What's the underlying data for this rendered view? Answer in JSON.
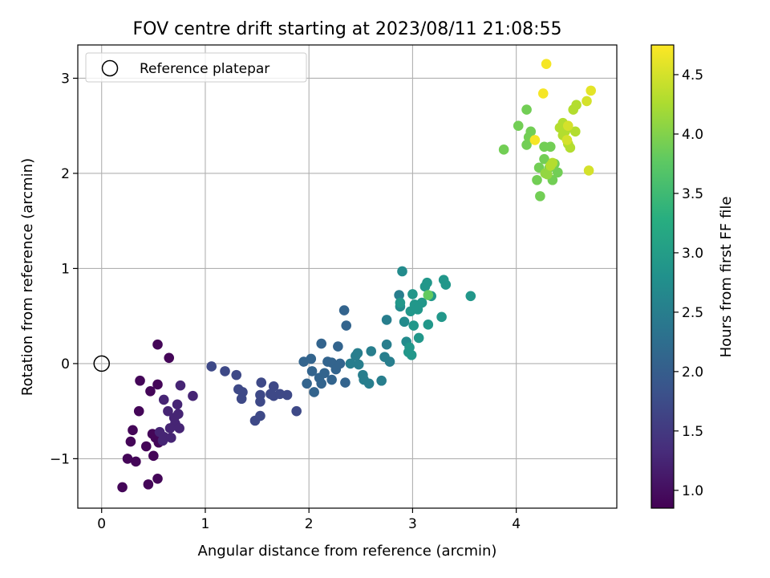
{
  "chart_data": {
    "type": "scatter",
    "title": "FOV centre drift starting at 2023/08/11 21:08:55",
    "xlabel": "Angular distance from reference (arcmin)",
    "ylabel": "Rotation from reference (arcmin)",
    "xlim": [
      -0.23,
      4.97
    ],
    "ylim": [
      -1.52,
      3.35
    ],
    "xticks": [
      0,
      1,
      2,
      3,
      4
    ],
    "yticks": [
      -1,
      0,
      1,
      2,
      3
    ],
    "grid": true,
    "legend": {
      "position": "top-left",
      "entries": [
        "Reference platepar"
      ]
    },
    "reference_point": {
      "x": 0,
      "y": 0
    },
    "colorbar": {
      "label": "Hours from first FF file",
      "colormap": "viridis",
      "range": [
        0.85,
        4.75
      ],
      "ticks": [
        "1.0",
        "1.5",
        "2.0",
        "2.5",
        "3.0",
        "3.5",
        "4.0",
        "4.5"
      ]
    },
    "points": [
      [
        0.54,
        0.2,
        0.9
      ],
      [
        0.65,
        0.06,
        0.9
      ],
      [
        0.37,
        -0.18,
        0.9
      ],
      [
        0.54,
        -0.22,
        0.9
      ],
      [
        0.47,
        -0.29,
        0.9
      ],
      [
        0.36,
        -0.5,
        0.9
      ],
      [
        0.3,
        -0.7,
        0.9
      ],
      [
        0.28,
        -0.82,
        0.9
      ],
      [
        0.43,
        -0.87,
        0.9
      ],
      [
        0.5,
        -0.97,
        0.9
      ],
      [
        0.25,
        -1.0,
        0.9
      ],
      [
        0.33,
        -1.03,
        0.9
      ],
      [
        0.2,
        -1.3,
        0.9
      ],
      [
        0.45,
        -1.27,
        0.9
      ],
      [
        0.54,
        -1.21,
        0.9
      ],
      [
        0.49,
        -0.74,
        0.9
      ],
      [
        0.52,
        -0.78,
        0.9
      ],
      [
        0.55,
        -0.83,
        0.9
      ],
      [
        0.6,
        -0.38,
        1.25
      ],
      [
        0.64,
        -0.5,
        1.25
      ],
      [
        0.7,
        -0.57,
        1.25
      ],
      [
        0.73,
        -0.43,
        1.25
      ],
      [
        0.74,
        -0.53,
        1.25
      ],
      [
        0.76,
        -0.23,
        1.25
      ],
      [
        0.71,
        -0.63,
        1.25
      ],
      [
        0.75,
        -0.68,
        1.25
      ],
      [
        0.66,
        -0.68,
        1.25
      ],
      [
        0.6,
        -0.77,
        1.25
      ],
      [
        0.67,
        -0.78,
        1.25
      ],
      [
        0.88,
        -0.34,
        1.25
      ],
      [
        0.56,
        -0.72,
        1.25
      ],
      [
        0.59,
        -0.81,
        1.25
      ],
      [
        1.06,
        -0.03,
        1.7
      ],
      [
        1.19,
        -0.08,
        1.7
      ],
      [
        1.3,
        -0.12,
        1.7
      ],
      [
        1.32,
        -0.27,
        1.7
      ],
      [
        1.36,
        -0.3,
        1.7
      ],
      [
        1.35,
        -0.37,
        1.7
      ],
      [
        1.48,
        -0.6,
        1.7
      ],
      [
        1.53,
        -0.55,
        1.7
      ],
      [
        1.53,
        -0.33,
        1.7
      ],
      [
        1.53,
        -0.4,
        1.7
      ],
      [
        1.54,
        -0.2,
        1.7
      ],
      [
        1.66,
        -0.24,
        1.7
      ],
      [
        1.66,
        -0.34,
        1.7
      ],
      [
        1.72,
        -0.32,
        1.7
      ],
      [
        1.79,
        -0.33,
        1.7
      ],
      [
        1.88,
        -0.5,
        1.7
      ],
      [
        1.63,
        -0.32,
        1.7
      ],
      [
        1.95,
        0.02,
        2.1
      ],
      [
        2.02,
        0.05,
        2.1
      ],
      [
        2.03,
        -0.08,
        2.1
      ],
      [
        2.1,
        -0.15,
        2.1
      ],
      [
        2.15,
        -0.1,
        2.1
      ],
      [
        2.18,
        0.02,
        2.1
      ],
      [
        2.22,
        0.01,
        2.1
      ],
      [
        2.12,
        0.21,
        2.1
      ],
      [
        2.26,
        -0.06,
        2.1
      ],
      [
        2.05,
        -0.3,
        2.1
      ],
      [
        1.98,
        -0.21,
        2.1
      ],
      [
        2.12,
        -0.21,
        2.1
      ],
      [
        2.22,
        -0.17,
        2.1
      ],
      [
        2.28,
        0.18,
        2.1
      ],
      [
        2.3,
        0.0,
        2.1
      ],
      [
        2.35,
        -0.2,
        2.1
      ],
      [
        2.34,
        0.56,
        2.1
      ],
      [
        2.36,
        0.4,
        2.1
      ],
      [
        2.4,
        0.0,
        2.5
      ],
      [
        2.45,
        0.08,
        2.5
      ],
      [
        2.47,
        0.11,
        2.5
      ],
      [
        2.48,
        -0.01,
        2.5
      ],
      [
        2.52,
        -0.12,
        2.5
      ],
      [
        2.53,
        -0.17,
        2.5
      ],
      [
        2.58,
        -0.21,
        2.5
      ],
      [
        2.6,
        0.13,
        2.5
      ],
      [
        2.7,
        -0.18,
        2.5
      ],
      [
        2.73,
        0.07,
        2.5
      ],
      [
        2.75,
        0.2,
        2.5
      ],
      [
        2.78,
        0.02,
        2.5
      ],
      [
        2.75,
        0.46,
        2.5
      ],
      [
        2.87,
        0.72,
        2.5
      ],
      [
        2.88,
        0.6,
        2.7
      ],
      [
        2.9,
        0.97,
        2.7
      ],
      [
        2.92,
        0.44,
        2.7
      ],
      [
        2.94,
        0.23,
        2.7
      ],
      [
        2.96,
        0.12,
        2.9
      ],
      [
        2.99,
        0.09,
        2.9
      ],
      [
        2.97,
        0.17,
        2.9
      ],
      [
        2.98,
        0.55,
        2.9
      ],
      [
        3.0,
        0.73,
        2.9
      ],
      [
        3.01,
        0.4,
        2.9
      ],
      [
        3.02,
        0.62,
        2.9
      ],
      [
        3.05,
        0.57,
        2.9
      ],
      [
        3.06,
        0.27,
        2.9
      ],
      [
        3.09,
        0.64,
        2.9
      ],
      [
        3.12,
        0.81,
        2.9
      ],
      [
        3.14,
        0.85,
        2.9
      ],
      [
        3.15,
        0.41,
        2.9
      ],
      [
        3.18,
        0.71,
        2.9
      ],
      [
        3.28,
        0.49,
        2.9
      ],
      [
        3.3,
        0.88,
        2.9
      ],
      [
        3.32,
        0.83,
        2.9
      ],
      [
        3.56,
        0.71,
        2.9
      ],
      [
        2.88,
        0.64,
        2.9
      ],
      [
        3.15,
        0.72,
        3.8
      ],
      [
        3.88,
        2.25,
        3.9
      ],
      [
        4.02,
        2.5,
        3.9
      ],
      [
        4.1,
        2.67,
        3.9
      ],
      [
        4.1,
        2.3,
        3.9
      ],
      [
        4.12,
        2.38,
        3.9
      ],
      [
        4.14,
        2.44,
        3.9
      ],
      [
        4.2,
        1.93,
        3.9
      ],
      [
        4.22,
        2.06,
        3.9
      ],
      [
        4.23,
        1.76,
        3.9
      ],
      [
        4.27,
        2.28,
        3.9
      ],
      [
        4.32,
        2.06,
        3.9
      ],
      [
        4.33,
        2.28,
        3.9
      ],
      [
        4.35,
        1.93,
        3.9
      ],
      [
        4.37,
        2.1,
        3.9
      ],
      [
        4.4,
        2.01,
        3.9
      ],
      [
        4.27,
        2.15,
        3.9
      ],
      [
        4.28,
        2.0,
        4.1
      ],
      [
        4.3,
        1.99,
        4.1
      ],
      [
        4.33,
        2.08,
        4.3
      ],
      [
        4.35,
        2.11,
        4.3
      ],
      [
        4.42,
        2.48,
        4.3
      ],
      [
        4.45,
        2.53,
        4.3
      ],
      [
        4.47,
        2.44,
        4.3
      ],
      [
        4.48,
        2.46,
        4.3
      ],
      [
        4.5,
        2.31,
        4.3
      ],
      [
        4.52,
        2.27,
        4.3
      ],
      [
        4.55,
        2.67,
        4.3
      ],
      [
        4.57,
        2.44,
        4.3
      ],
      [
        4.58,
        2.72,
        4.3
      ],
      [
        4.45,
        2.4,
        4.3
      ],
      [
        4.49,
        2.35,
        4.5
      ],
      [
        4.5,
        2.5,
        4.5
      ],
      [
        4.68,
        2.76,
        4.5
      ],
      [
        4.7,
        2.03,
        4.5
      ],
      [
        4.72,
        2.87,
        4.6
      ],
      [
        4.18,
        2.35,
        4.7
      ],
      [
        4.26,
        2.84,
        4.7
      ],
      [
        4.29,
        3.15,
        4.7
      ]
    ]
  }
}
